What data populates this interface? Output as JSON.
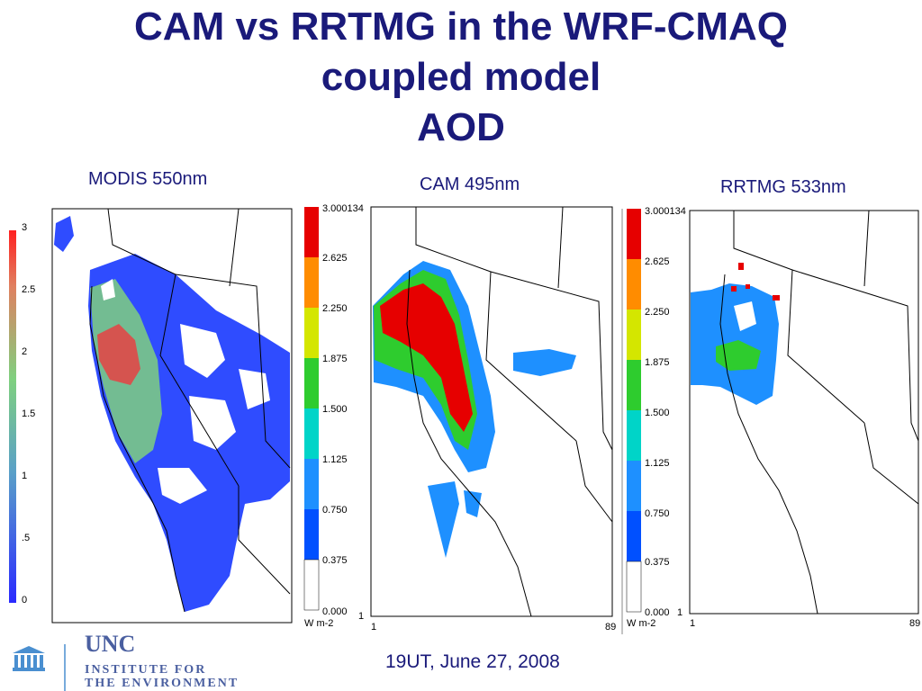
{
  "slide": {
    "title_lines": [
      "CAM vs RRTMG in the WRF-CMAQ",
      "coupled model",
      "AOD"
    ],
    "footer_date": "19UT, June 27, 2008"
  },
  "panels": [
    {
      "label": "MODIS 550nm",
      "colorbar": {
        "type": "continuous",
        "ticks": [
          "3",
          "2.5",
          "2",
          "1.5",
          "1",
          ".5",
          "0"
        ]
      }
    },
    {
      "label": "CAM 495nm",
      "colorbar": {
        "type": "discrete",
        "ticks": [
          "3.000134",
          "2.625",
          "2.250",
          "1.875",
          "1.500",
          "1.125",
          "0.750",
          "0.375",
          "0.000"
        ],
        "unit": "W m-2",
        "colors": [
          "#e60000",
          "#ff8c00",
          "#d4e600",
          "#2ecc2e",
          "#00d4c8",
          "#1e90ff",
          "#0050ff",
          "#ffffff"
        ]
      },
      "axis": {
        "y_bottom": "1",
        "x_left": "1",
        "x_right": "89"
      }
    },
    {
      "label": "RRTMG 533nm",
      "colorbar": {
        "type": "discrete",
        "ticks": [
          "3.000134",
          "2.625",
          "2.250",
          "1.875",
          "1.500",
          "1.125",
          "0.750",
          "0.375",
          "0.000"
        ],
        "unit": "W m-2",
        "colors": [
          "#e60000",
          "#ff8c00",
          "#d4e600",
          "#2ecc2e",
          "#00d4c8",
          "#1e90ff",
          "#0050ff",
          "#ffffff"
        ]
      },
      "axis": {
        "y_bottom": "1",
        "x_left": "1",
        "x_right": "89"
      }
    }
  ],
  "logo": {
    "line1": "INSTITUTE FOR",
    "line2": "THE ENVIRONMENT",
    "emblem_text": "UNC"
  }
}
